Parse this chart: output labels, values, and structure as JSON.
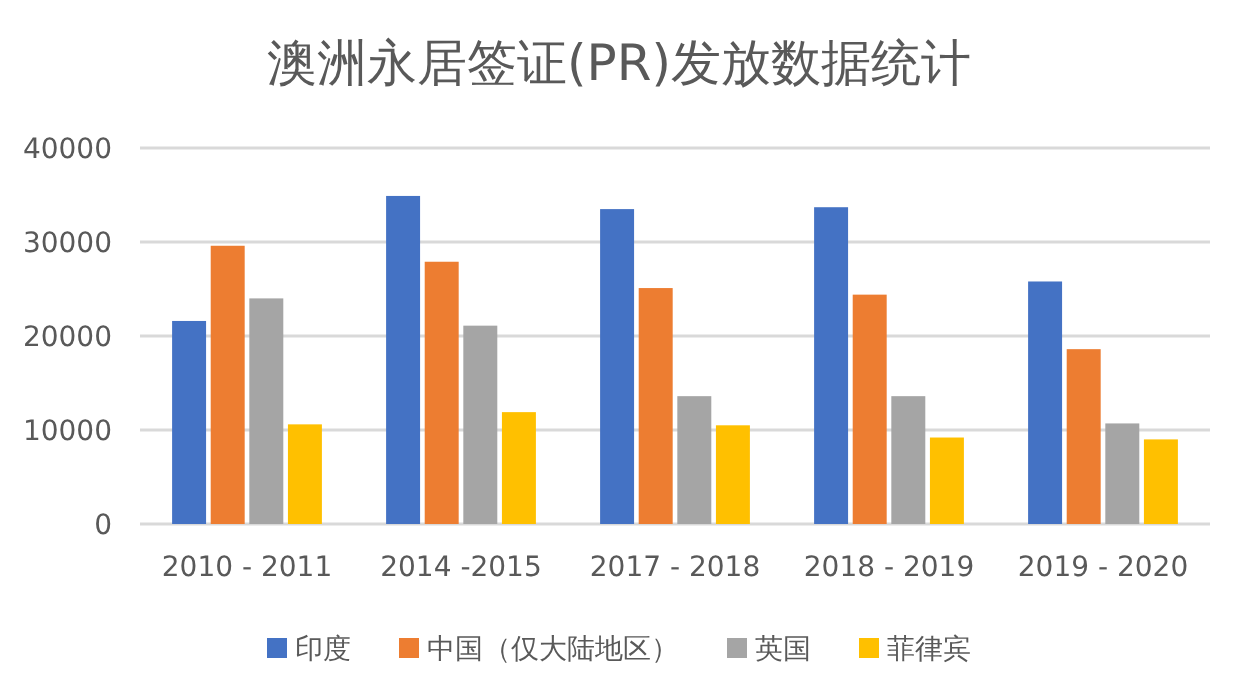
{
  "chart_data": {
    "type": "bar",
    "title": "澳洲永居签证(PR)发放数据统计",
    "categories": [
      "2010 - 2011",
      "2014 -2015",
      "2017 - 2018",
      "2018 - 2019",
      "2019 - 2020"
    ],
    "series": [
      {
        "name": "印度",
        "color": "#4472c4",
        "values": [
          21600,
          34900,
          33500,
          33700,
          25800
        ]
      },
      {
        "name": "中国（仅大陆地区）",
        "color": "#ed7d31",
        "values": [
          29600,
          27900,
          25100,
          24400,
          18600
        ]
      },
      {
        "name": "英国",
        "color": "#a5a5a5",
        "values": [
          24000,
          21100,
          13600,
          13600,
          10700
        ]
      },
      {
        "name": "菲律宾",
        "color": "#ffc000",
        "values": [
          10600,
          11900,
          10500,
          9200,
          9000
        ]
      }
    ],
    "ylim": [
      0,
      40000
    ],
    "yticks": [
      0,
      10000,
      20000,
      30000,
      40000
    ],
    "grid": "y",
    "legend": "bottom"
  }
}
